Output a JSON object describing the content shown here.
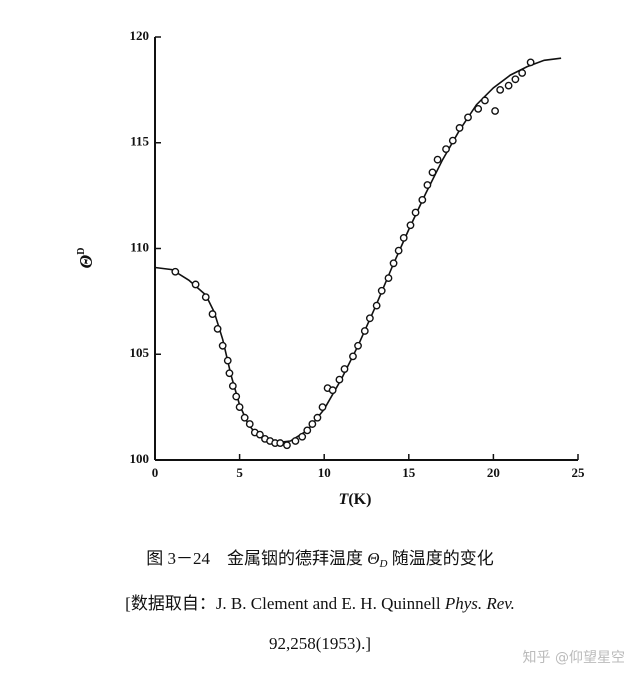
{
  "chart_data": {
    "type": "scatter",
    "xlim": [
      0,
      25
    ],
    "xticks": [
      0,
      5,
      10,
      15,
      20,
      25
    ],
    "ylim": [
      100,
      120
    ],
    "yticks": [
      100,
      105,
      110,
      115,
      120
    ],
    "xlabel_symbol": "T",
    "xlabel_unit": "(K)",
    "ylabel_symbol": "Θ",
    "ylabel_sub": "D",
    "color": "#111111",
    "points": {
      "x": [
        1.2,
        2.4,
        3.0,
        3.4,
        3.7,
        4.0,
        4.3,
        4.4,
        4.6,
        4.8,
        5.0,
        5.3,
        5.6,
        5.9,
        6.2,
        6.5,
        6.8,
        7.1,
        7.4,
        7.8,
        8.3,
        8.7,
        9.0,
        9.3,
        9.6,
        9.9,
        10.2,
        10.5,
        10.9,
        11.2,
        11.7,
        12.0,
        12.4,
        12.7,
        13.1,
        13.4,
        13.8,
        14.1,
        14.4,
        14.7,
        15.1,
        15.4,
        15.8,
        16.1,
        16.4,
        16.7,
        17.2,
        17.6,
        18.0,
        18.5,
        19.1,
        19.5,
        20.1,
        20.4,
        20.9,
        21.3,
        21.7,
        22.2
      ],
      "values": [
        108.9,
        108.3,
        107.7,
        106.9,
        106.2,
        105.4,
        104.7,
        104.1,
        103.5,
        103.0,
        102.5,
        102.0,
        101.7,
        101.3,
        101.2,
        101.0,
        100.9,
        100.8,
        100.8,
        100.7,
        100.9,
        101.1,
        101.4,
        101.7,
        102.0,
        102.5,
        103.4,
        103.3,
        103.8,
        104.3,
        104.9,
        105.4,
        106.1,
        106.7,
        107.3,
        108.0,
        108.6,
        109.3,
        109.9,
        110.5,
        111.1,
        111.7,
        112.3,
        113.0,
        113.6,
        114.2,
        114.7,
        115.1,
        115.7,
        116.2,
        116.6,
        117.0,
        116.5,
        117.5,
        117.7,
        118.0,
        118.3,
        118.8
      ]
    },
    "curve": {
      "x": [
        0,
        1,
        2,
        3,
        3.5,
        4,
        4.5,
        5,
        5.5,
        6,
        7,
        8,
        9,
        10,
        11,
        12,
        13,
        14,
        15,
        16,
        17,
        18,
        19,
        20,
        21,
        22,
        23,
        24
      ],
      "values": [
        109.1,
        109.0,
        108.5,
        107.8,
        107.0,
        105.7,
        104.0,
        102.6,
        101.7,
        101.2,
        100.8,
        100.9,
        101.4,
        102.4,
        103.8,
        105.4,
        107.2,
        109.1,
        110.9,
        112.6,
        114.2,
        115.6,
        116.8,
        117.6,
        118.2,
        118.6,
        118.9,
        119.0
      ]
    },
    "caption": {
      "line1_a": "图 3－24　金属铟的德拜温度 ",
      "line1_symbol": "Θ",
      "line1_sub": "D",
      "line1_b": " 随温度的变化",
      "line2_a": "[数据取自：J. B. Clement and E. H. Quinnell ",
      "line2_journal": "Phys. Rev.",
      "line3": "92,258(1953).]"
    },
    "watermark": "知乎 @仰望星空"
  }
}
